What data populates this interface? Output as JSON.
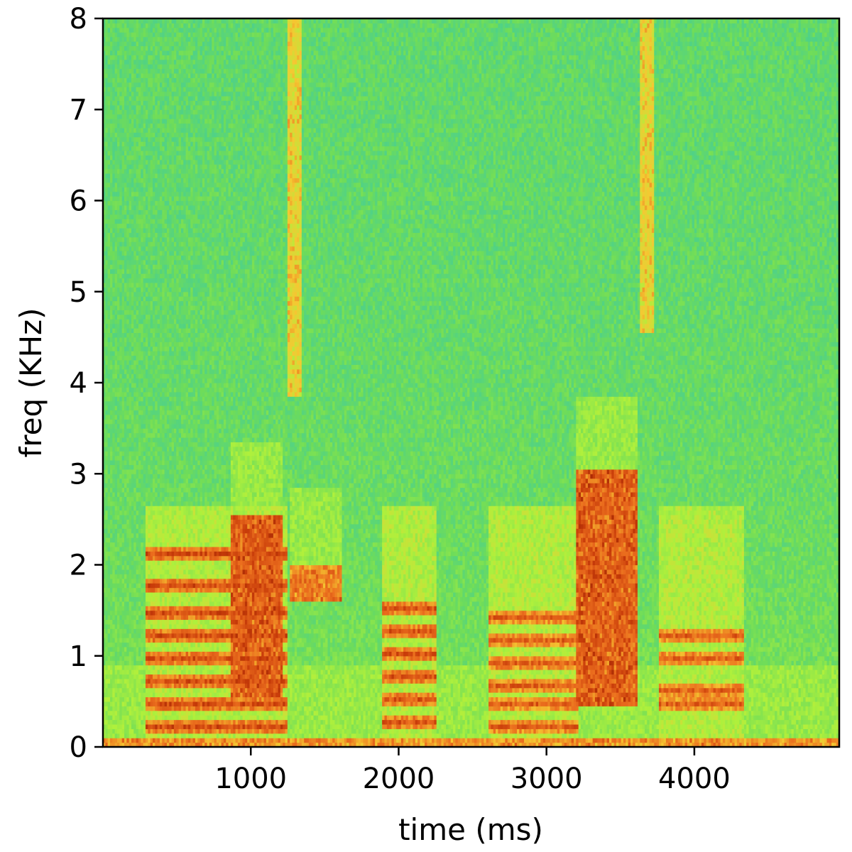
{
  "chart_data": {
    "type": "heatmap",
    "subtype": "spectrogram",
    "xlabel": "time (ms)",
    "ylabel": "freq (KHz)",
    "xlim": [
      0,
      4980
    ],
    "ylim": [
      0,
      8
    ],
    "x_ticks": [
      1000,
      2000,
      3000,
      4000
    ],
    "x_tick_labels": [
      "1000",
      "2000",
      "3000",
      "4000"
    ],
    "y_ticks": [
      0,
      1,
      2,
      3,
      4,
      5,
      6,
      7,
      8
    ],
    "y_tick_labels": [
      "0",
      "1",
      "2",
      "3",
      "4",
      "5",
      "6",
      "7",
      "8"
    ],
    "grid": false,
    "colormap": "rainbow (blue low → green → yellow → orange → dark red high)",
    "colors": {
      "low": "#2fa8e0",
      "mid_low": "#34c8b0",
      "mid": "#8fe84a",
      "mid_high": "#f4c030",
      "high": "#e8581c",
      "peak": "#8b1a00"
    },
    "energy_events": [
      {
        "t0": 0,
        "t1": 4980,
        "f0": 0.0,
        "f1": 0.08,
        "level": 0.82
      },
      {
        "t0": 280,
        "t1": 1240,
        "harmonics_khz": [
          0.2,
          0.45,
          0.7,
          0.95,
          1.2,
          1.45,
          1.75,
          2.1
        ],
        "level": 0.88
      },
      {
        "t0": 860,
        "t1": 1200,
        "f0": 0.5,
        "f1": 2.5,
        "level": 0.9
      },
      {
        "t0": 1260,
        "t1": 1600,
        "f0": 1.6,
        "f1": 2.0,
        "level": 0.85
      },
      {
        "t0": 1240,
        "t1": 1330,
        "f0": 3.8,
        "f1": 8.0,
        "level": 0.72
      },
      {
        "t0": 1880,
        "t1": 2250,
        "harmonics_khz": [
          0.25,
          0.5,
          0.75,
          1.0,
          1.25,
          1.5
        ],
        "level": 0.87
      },
      {
        "t0": 2600,
        "t1": 3200,
        "harmonics_khz": [
          0.2,
          0.45,
          0.65,
          0.9,
          1.15,
          1.4
        ],
        "level": 0.85
      },
      {
        "t0": 3200,
        "t1": 3600,
        "f0": 0.4,
        "f1": 3.0,
        "level": 0.9
      },
      {
        "t0": 3620,
        "t1": 3720,
        "f0": 4.5,
        "f1": 8.0,
        "level": 0.72
      },
      {
        "t0": 3760,
        "t1": 4330,
        "harmonics_khz": [
          0.45,
          0.6,
          0.95,
          1.2
        ],
        "level": 0.85
      }
    ]
  }
}
